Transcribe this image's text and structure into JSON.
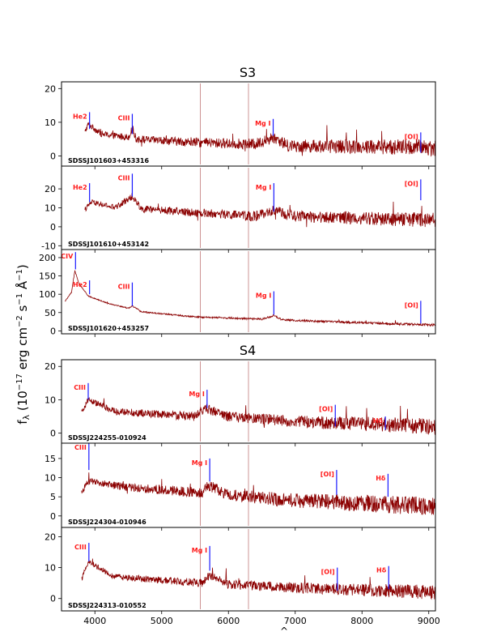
{
  "chart_data": {
    "type": "line",
    "ylabel_parts": {
      "base": "f",
      "sub": "λ",
      "open": " (10",
      "exp1": "−17",
      "unit1": " erg cm",
      "exp2": "−2",
      "unit2": " s",
      "exp3": "−1",
      "unit3": " Å",
      "exp4": "−1",
      "close": ")"
    },
    "xlabel": "^",
    "xlim": [
      3500,
      9100
    ],
    "xticks": [
      4000,
      5000,
      6000,
      7000,
      8000,
      9000
    ],
    "groups": [
      {
        "title": "S3"
      },
      {
        "title": "S4"
      }
    ],
    "panels": [
      {
        "group": 0,
        "object": "SDSSJ101603+453316",
        "ylim": [
          -3,
          22
        ],
        "yticks": [
          0,
          10,
          20
        ],
        "continuum": [
          [
            3850,
            7.0
          ],
          [
            3900,
            9.5
          ],
          [
            4100,
            6.5
          ],
          [
            4500,
            5.5
          ],
          [
            4560,
            8.0
          ],
          [
            4620,
            5.0
          ],
          [
            5500,
            4.0
          ],
          [
            6400,
            3.5
          ],
          [
            6680,
            5.5
          ],
          [
            6900,
            3.0
          ],
          [
            8000,
            2.8
          ],
          [
            9100,
            2.5
          ]
        ],
        "noise": 1.4,
        "lines": [
          {
            "label": "He2",
            "x": 3920,
            "top": 13,
            "bottom": 8
          },
          {
            "label": "CIII",
            "x": 4560,
            "top": 12.5,
            "bottom": 6.5
          },
          {
            "label": "Mg I",
            "x": 6670,
            "top": 11,
            "bottom": 6
          },
          {
            "label": "[OI]",
            "x": 8880,
            "top": 7,
            "bottom": 1
          }
        ]
      },
      {
        "group": 0,
        "object": "SDSSJ101610+453142",
        "ylim": [
          -12,
          32
        ],
        "yticks": [
          -10,
          0,
          10,
          20
        ],
        "continuum": [
          [
            3850,
            9.0
          ],
          [
            3950,
            13.0
          ],
          [
            4300,
            10.0
          ],
          [
            4560,
            16.0
          ],
          [
            4700,
            9.5
          ],
          [
            5500,
            7.5
          ],
          [
            6400,
            5.5
          ],
          [
            6680,
            8.5
          ],
          [
            7000,
            5.5
          ],
          [
            9100,
            3.5
          ]
        ],
        "noise": 2.2,
        "lines": [
          {
            "label": "He2",
            "x": 3920,
            "top": 23,
            "bottom": 13
          },
          {
            "label": "CIII",
            "x": 4560,
            "top": 28,
            "bottom": 16
          },
          {
            "label": "Mg I",
            "x": 6680,
            "top": 23,
            "bottom": 8
          },
          {
            "label": "[OI]",
            "x": 8880,
            "top": 25,
            "bottom": 14
          }
        ]
      },
      {
        "group": 0,
        "object": "SDSSJ101620+453257",
        "ylim": [
          -8,
          222
        ],
        "yticks": [
          0,
          50,
          100,
          150,
          200
        ],
        "continuum": [
          [
            3550,
            80
          ],
          [
            3650,
            105
          ],
          [
            3700,
            165
          ],
          [
            3760,
            130
          ],
          [
            3900,
            95
          ],
          [
            4200,
            75
          ],
          [
            4500,
            62
          ],
          [
            4560,
            68
          ],
          [
            4700,
            52
          ],
          [
            5500,
            38
          ],
          [
            6500,
            32
          ],
          [
            6680,
            42
          ],
          [
            6800,
            30
          ],
          [
            8000,
            22
          ],
          [
            9100,
            16
          ]
        ],
        "noise": 2.0,
        "lines": [
          {
            "label": "CIV",
            "x": 3710,
            "top": 215,
            "bottom": 168
          },
          {
            "label": "He2",
            "x": 3920,
            "top": 138,
            "bottom": 100
          },
          {
            "label": "CIII",
            "x": 4560,
            "top": 132,
            "bottom": 68
          },
          {
            "label": "Mg I",
            "x": 6680,
            "top": 108,
            "bottom": 44
          },
          {
            "label": "[OI]",
            "x": 8880,
            "top": 82,
            "bottom": 20
          }
        ]
      },
      {
        "group": 1,
        "object": "SDSSJ224255-010924",
        "ylim": [
          -3,
          22
        ],
        "yticks": [
          0,
          10,
          20
        ],
        "continuum": [
          [
            3800,
            6.0
          ],
          [
            3900,
            10.0
          ],
          [
            4300,
            6.5
          ],
          [
            5500,
            5.0
          ],
          [
            5650,
            7.5
          ],
          [
            6000,
            5.0
          ],
          [
            7000,
            3.5
          ],
          [
            9100,
            2.0
          ]
        ],
        "noise": 1.4,
        "lines": [
          {
            "label": "CIII",
            "x": 3900,
            "top": 15,
            "bottom": 10
          },
          {
            "label": "Mg I",
            "x": 5680,
            "top": 13,
            "bottom": 7.5
          },
          {
            "label": "[OI]",
            "x": 7600,
            "top": 8.5,
            "bottom": 2
          },
          {
            "label": "Hδ",
            "x": 8350,
            "top": 5,
            "bottom": 1
          }
        ]
      },
      {
        "group": 1,
        "object": "SDSSJ224304-010946",
        "ylim": [
          -3,
          19
        ],
        "yticks": [
          0,
          5,
          10,
          15
        ],
        "continuum": [
          [
            3800,
            6.0
          ],
          [
            3900,
            9.0
          ],
          [
            4500,
            7.5
          ],
          [
            5600,
            6.0
          ],
          [
            5700,
            8.0
          ],
          [
            6000,
            5.5
          ],
          [
            7000,
            4.0
          ],
          [
            9100,
            2.5
          ]
        ],
        "noise": 1.4,
        "lines": [
          {
            "label": "CIII",
            "x": 3910,
            "top": 19,
            "bottom": 12
          },
          {
            "label": "Mg I",
            "x": 5720,
            "top": 15,
            "bottom": 9
          },
          {
            "label": "[OI]",
            "x": 7620,
            "top": 12,
            "bottom": 5.5
          },
          {
            "label": "Hδ",
            "x": 8390,
            "top": 11,
            "bottom": 5
          }
        ]
      },
      {
        "group": 1,
        "object": "SDSSJ224313-010552",
        "ylim": [
          -4,
          23
        ],
        "yticks": [
          0,
          10,
          20
        ],
        "continuum": [
          [
            3800,
            6.0
          ],
          [
            3900,
            12.0
          ],
          [
            4300,
            7.0
          ],
          [
            5600,
            5.0
          ],
          [
            5720,
            7.5
          ],
          [
            6000,
            4.5
          ],
          [
            7000,
            3.5
          ],
          [
            9100,
            2.0
          ]
        ],
        "noise": 1.3,
        "lines": [
          {
            "label": "CIII",
            "x": 3910,
            "top": 18,
            "bottom": 12
          },
          {
            "label": "Mg I",
            "x": 5720,
            "top": 17,
            "bottom": 9
          },
          {
            "label": "[OI]",
            "x": 7630,
            "top": 10,
            "bottom": 2.5
          },
          {
            "label": "Hδ",
            "x": 8400,
            "top": 10.5,
            "bottom": 3
          }
        ]
      }
    ]
  }
}
